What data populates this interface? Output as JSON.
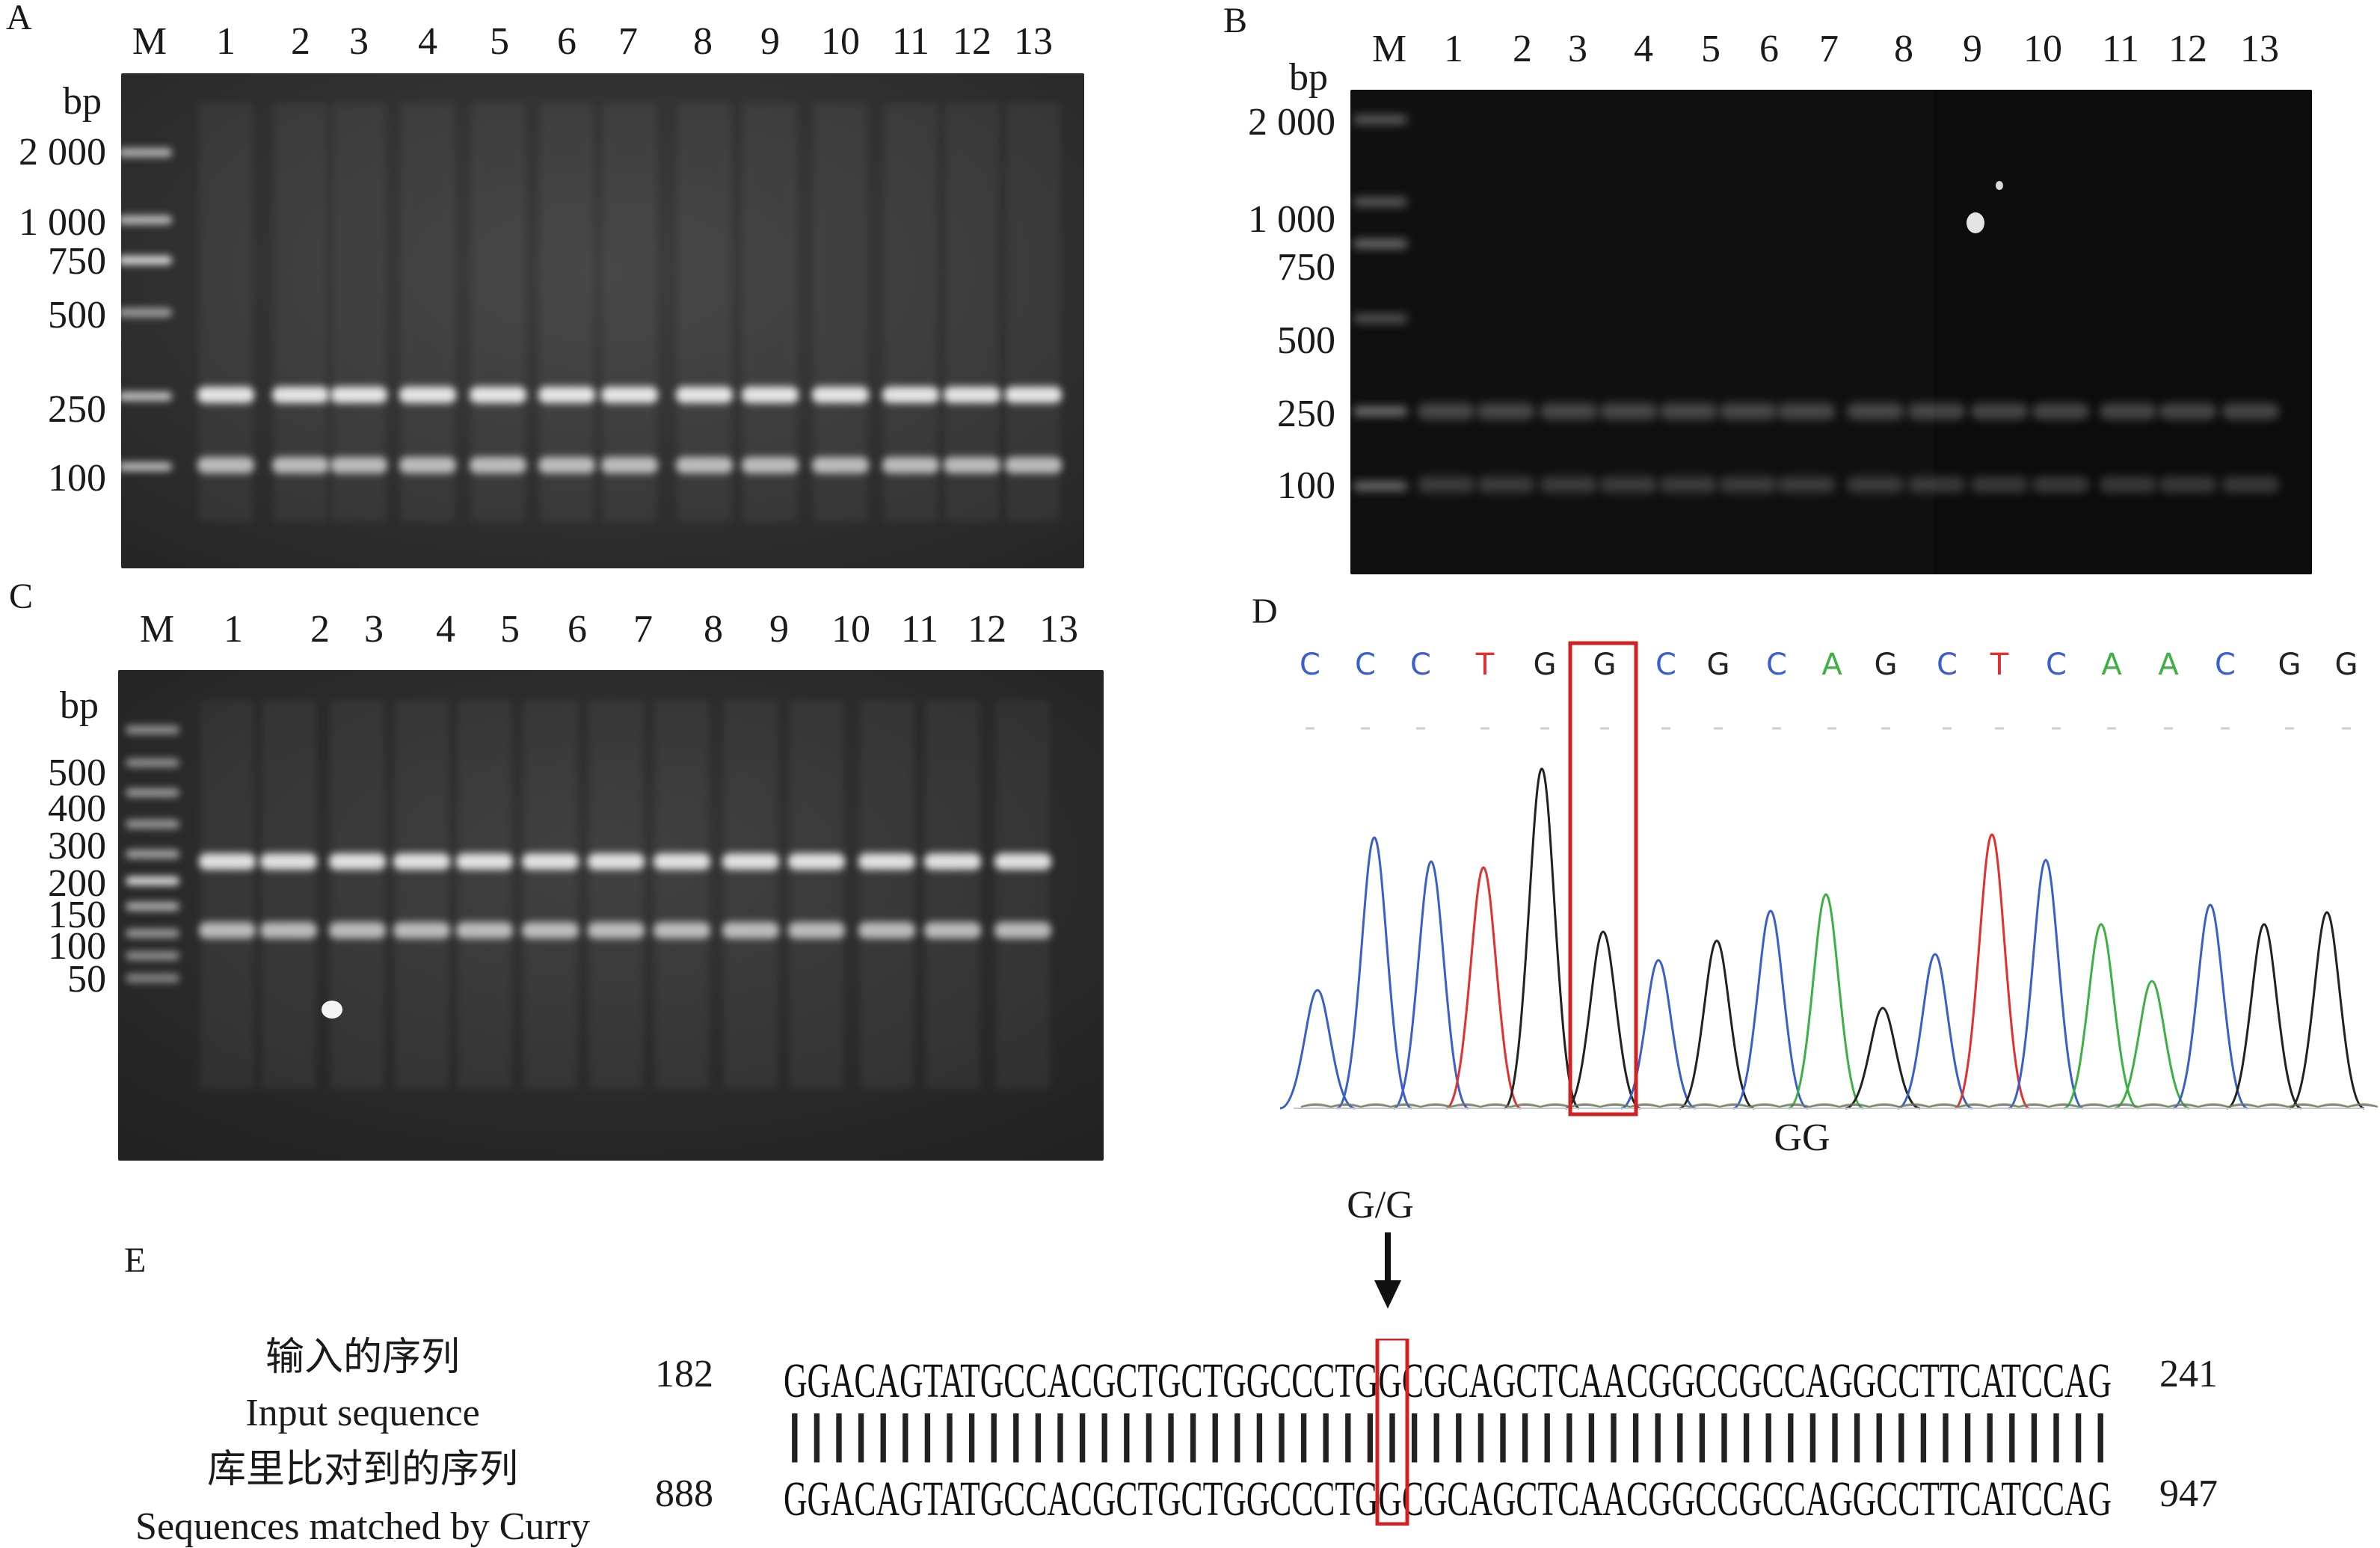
{
  "panel_a": {
    "letter": "A",
    "lane_labels": [
      "M",
      "1",
      "2",
      "3",
      "4",
      "5",
      "6",
      "7",
      "8",
      "9",
      "10",
      "11",
      "12",
      "13"
    ],
    "bp_label": "bp",
    "marker_sizes": [
      "2 000",
      "1 000",
      "750",
      "500",
      "250",
      "100"
    ]
  },
  "panel_b": {
    "letter": "B",
    "lane_labels": [
      "M",
      "1",
      "2",
      "3",
      "4",
      "5",
      "6",
      "7",
      "8",
      "9",
      "10",
      "11",
      "12",
      "13"
    ],
    "bp_label": "bp",
    "marker_sizes": [
      "2 000",
      "1 000",
      "750",
      "500",
      "250",
      "100"
    ]
  },
  "panel_c": {
    "letter": "C",
    "lane_labels": [
      "M",
      "1",
      "2",
      "3",
      "4",
      "5",
      "6",
      "7",
      "8",
      "9",
      "10",
      "11",
      "12",
      "13"
    ],
    "bp_label": "bp",
    "marker_sizes": [
      "500",
      "400",
      "300",
      "200",
      "150",
      "100",
      "50"
    ]
  },
  "panel_d": {
    "letter": "D",
    "bases": [
      "C",
      "C",
      "C",
      "T",
      "G",
      "G",
      "C",
      "G",
      "C",
      "A",
      "G",
      "C",
      "T",
      "C",
      "A",
      "A",
      "C",
      "G",
      "G"
    ],
    "genotype": "GG",
    "base_colors": {
      "A": "#3cb043",
      "C": "#3a5fcd",
      "G": "#222222",
      "T": "#e03030"
    },
    "highlight_color": "#d42020"
  },
  "panel_e": {
    "letter": "E",
    "arrow_label": "G/G",
    "input_label_cn": "输入的序列",
    "input_label_en": "Input sequence",
    "matched_label_cn": "库里比对到的序列",
    "matched_label_en": "Sequences matched by Curry",
    "input_start": "182",
    "input_end": "241",
    "matched_start": "888",
    "matched_end": "947",
    "input_sequence": "GGACAGTATGCCACGCTGCTGGCCCTGGCGCAGCTCAACGGCCGCCAGGCCTTCATCCAG",
    "matched_sequence": "GGACAGTATGCCACGCTGCTGGCCCTGGCGCAGCTCAACGGCCGCCAGGCCTTCATCCAG",
    "match_bars": "||||||||||||||||||||||||||||||||||||||||||||||||||||||||||||"
  }
}
